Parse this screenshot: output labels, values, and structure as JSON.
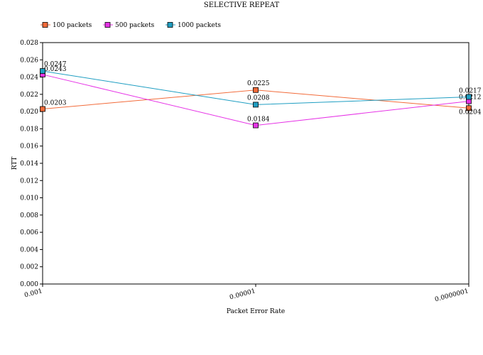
{
  "chart_data": {
    "type": "line",
    "title": "SELECTIVE REPEAT",
    "xlabel": "Packet Error Rate",
    "ylabel": "RTT",
    "categories": [
      "0.001",
      "0.00001",
      "0.0000001"
    ],
    "ylim": [
      0,
      0.028
    ],
    "ytick_labels": [
      "0.000",
      "0.002",
      "0.004",
      "0.006",
      "0.008",
      "0.010",
      "0.012",
      "0.014",
      "0.016",
      "0.018",
      "0.020",
      "0.022",
      "0.024",
      "0.026",
      "0.028"
    ],
    "grid": false,
    "legend_position": "top-left",
    "series": [
      {
        "name": "100 packets",
        "color": "#f26b3a",
        "values": [
          0.0203,
          0.0225,
          0.0204
        ],
        "labels": [
          "0.0203",
          "0.0225",
          "0.0204"
        ]
      },
      {
        "name": "500 packets",
        "color": "#e633e6",
        "values": [
          0.0243,
          0.0184,
          0.0212
        ],
        "labels": [
          "0.0243",
          "0.0184",
          "0.0212"
        ]
      },
      {
        "name": "1000 packets",
        "color": "#1f9ec2",
        "values": [
          0.0247,
          0.0208,
          0.0217
        ],
        "labels": [
          "0.0247",
          "0.0208",
          "0.0217"
        ]
      }
    ]
  }
}
